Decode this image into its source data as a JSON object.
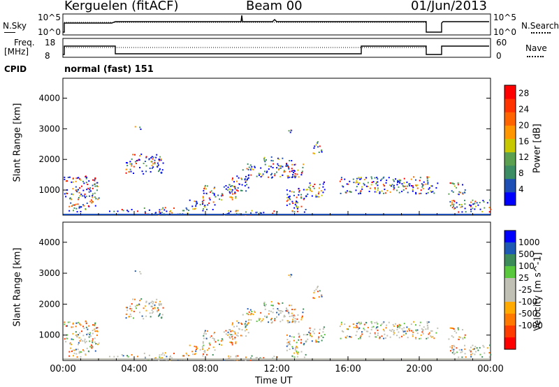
{
  "header": {
    "station": "Kerguelen (fitACF)",
    "beam": "Beam 00",
    "date": "01/Jun/2013"
  },
  "top_panels": {
    "nsky": {
      "label": "N.Sky",
      "ticks": [
        "10^5",
        "10^0"
      ]
    },
    "nsearch": {
      "label": "N.Search",
      "ticks": [
        "10^5",
        "10^0"
      ]
    },
    "freq": {
      "label_line1": "Freq.",
      "label_line2": "[MHz]",
      "ticks": [
        "18",
        "8"
      ]
    },
    "nave": {
      "label": "Nave",
      "ticks": [
        "60",
        "0"
      ]
    },
    "cpid": {
      "label": "CPID",
      "value": "normal (fast) 151"
    }
  },
  "colors": {
    "power_scale": [
      "#0000ff",
      "#1e4fb4",
      "#3c8c64",
      "#5aa050",
      "#c8c800",
      "#ff9600",
      "#ff6400",
      "#ff3200",
      "#ff0000"
    ],
    "velocity_scale": [
      "#ff0000",
      "#ff3c00",
      "#ff7800",
      "#ffaa00",
      "#c0c0b4",
      "#c0c0b4",
      "#5ac83c",
      "#3c8c5a",
      "#1e5ab4",
      "#0000ff"
    ]
  },
  "chart_data": [
    {
      "type": "heatmap",
      "name": "power",
      "ylabel": "Slant Range [km]",
      "ytick_labels": [
        "1000",
        "2000",
        "3000",
        "4000"
      ],
      "yticks": [
        1000,
        2000,
        3000,
        4000
      ],
      "ylim": [
        180,
        4650
      ],
      "xlim": [
        0,
        24
      ],
      "colorbar": {
        "label": "Power [dB]",
        "ticks": [
          "4",
          "8",
          "12",
          "16",
          "20",
          "24",
          "28"
        ],
        "range": [
          0,
          30
        ]
      }
    },
    {
      "type": "heatmap",
      "name": "velocity",
      "ylabel": "Slant Range [km]",
      "ytick_labels": [
        "1000",
        "2000",
        "3000",
        "4000"
      ],
      "yticks": [
        1000,
        2000,
        3000,
        4000
      ],
      "ylim": [
        180,
        4650
      ],
      "xlim": [
        0,
        24
      ],
      "xlabel": "Time UT",
      "xtick_labels": [
        "00:00",
        "04:00",
        "08:00",
        "12:00",
        "16:00",
        "20:00",
        "00:00"
      ],
      "colorbar": {
        "label": "Velocity [m s^-1]",
        "ticks": [
          "-1000",
          "-500",
          "-100",
          "-25",
          "25",
          "100",
          "500",
          "1000"
        ]
      }
    }
  ]
}
